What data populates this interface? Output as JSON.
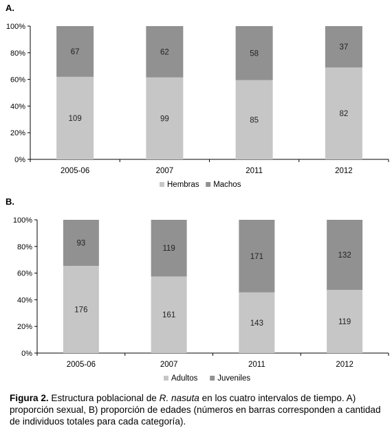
{
  "chart_data": [
    {
      "type": "bar",
      "stacked": true,
      "normalized": true,
      "panel_label": "A.",
      "categories": [
        "2005-06",
        "2007",
        "2011",
        "2012"
      ],
      "series": [
        {
          "name": "Hembras",
          "values": [
            109,
            99,
            85,
            82
          ],
          "color": "#c6c6c6"
        },
        {
          "name": "Machos",
          "values": [
            67,
            62,
            58,
            37
          ],
          "color": "#919191"
        }
      ],
      "yticks": [
        "0%",
        "20%",
        "40%",
        "60%",
        "80%",
        "100%"
      ],
      "ylim": [
        0,
        100
      ],
      "legend_position": "bottom",
      "grid": false
    },
    {
      "type": "bar",
      "stacked": true,
      "normalized": true,
      "panel_label": "B.",
      "categories": [
        "2005-06",
        "2007",
        "2011",
        "2012"
      ],
      "series": [
        {
          "name": "Adultos",
          "values": [
            176,
            161,
            143,
            119
          ],
          "color": "#c6c6c6"
        },
        {
          "name": "Juveniles",
          "values": [
            93,
            119,
            171,
            132
          ],
          "color": "#919191"
        }
      ],
      "yticks": [
        "0%",
        "20%",
        "40%",
        "60%",
        "80%",
        "100%"
      ],
      "ylim": [
        0,
        100
      ],
      "legend_position": "bottom",
      "grid": false
    }
  ],
  "caption": {
    "lead": "Figura 2.",
    "text_before": " Estructura poblacional de ",
    "species": "R. nasuta",
    "text_after": " en los cuatro intervalos de tiempo. A) proporción sexual, B) proporción de edades (números en barras corresponden a cantidad de individuos totales para cada categoría)."
  }
}
